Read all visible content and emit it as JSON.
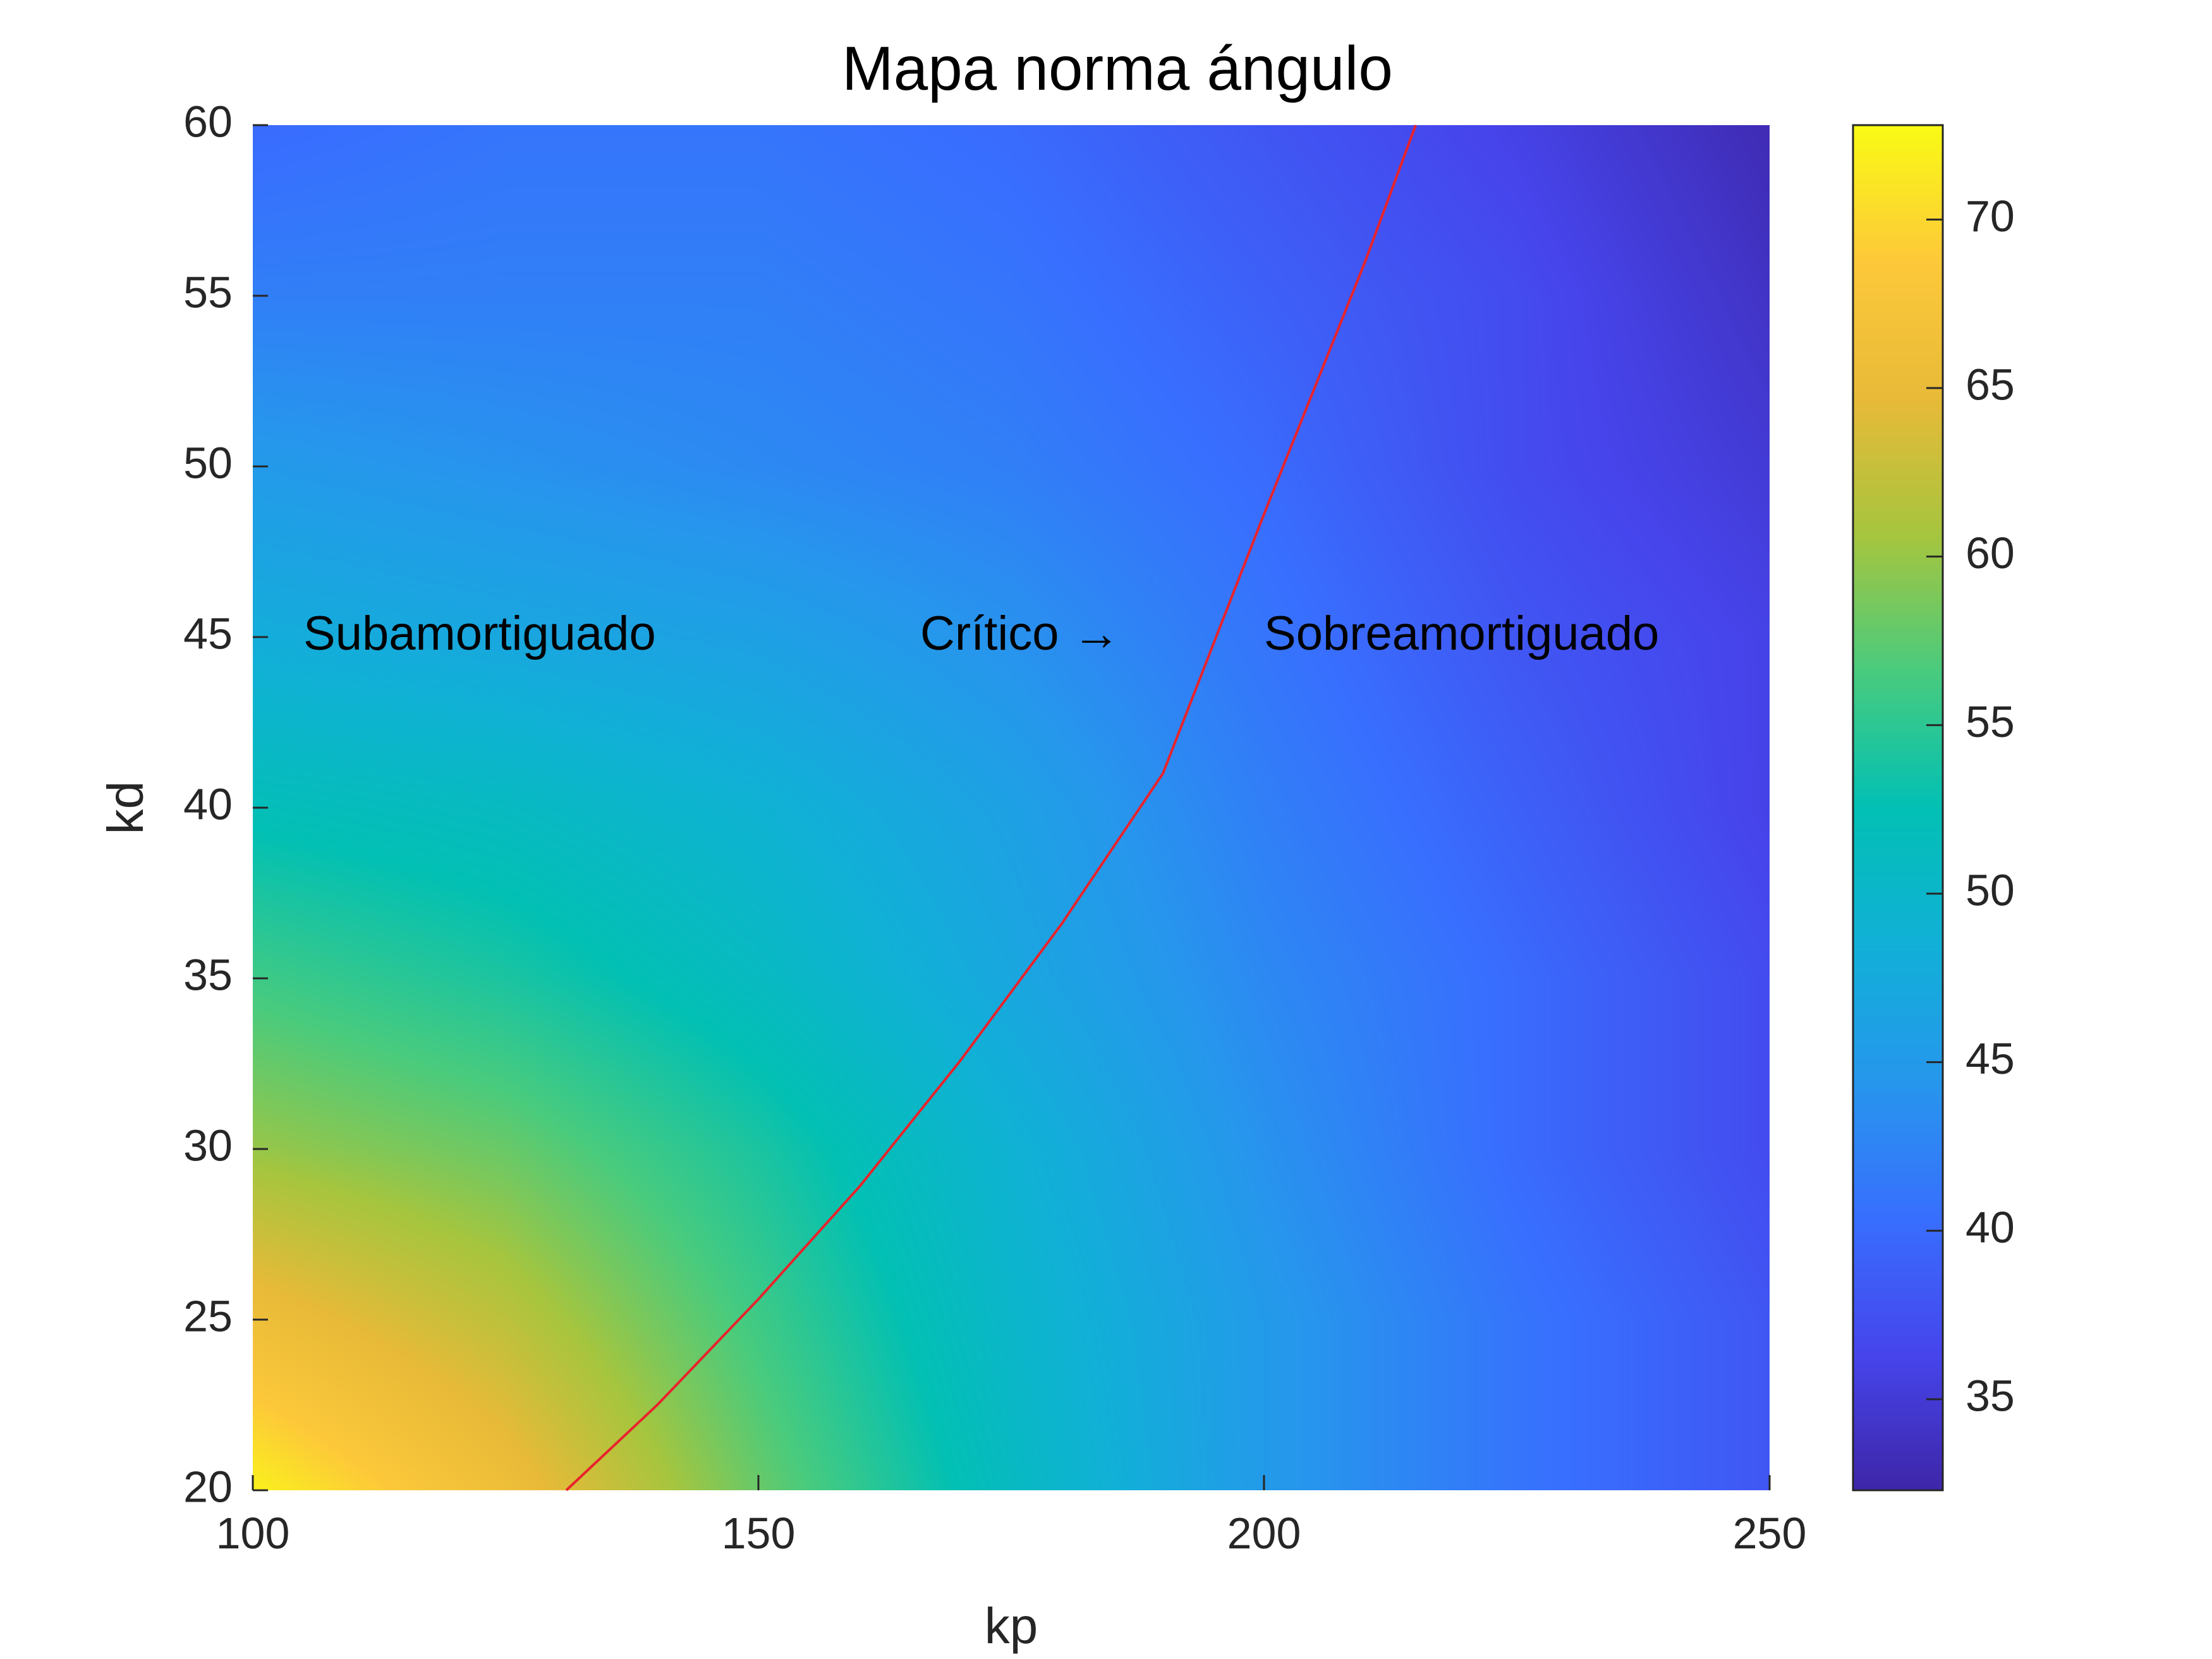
{
  "chart_data": {
    "type": "heatmap",
    "title": "Mapa norma ángulo",
    "xlabel": "kp",
    "ylabel": "kd",
    "xlim": [
      100,
      250
    ],
    "ylim": [
      20,
      60
    ],
    "x_ticks": [
      "100",
      "150",
      "200",
      "250"
    ],
    "y_ticks": [
      "20",
      "25",
      "30",
      "35",
      "40",
      "45",
      "50",
      "55",
      "60"
    ],
    "colorbar": {
      "colormap": "parula",
      "clim": [
        32.3,
        72.8
      ],
      "ticks": [
        "35",
        "40",
        "45",
        "50",
        "55",
        "60",
        "65",
        "70"
      ]
    },
    "z_samples": {
      "description_units": "kd rows (20..60 step 5) x kp columns (100..250 step 25)",
      "kp": [
        100,
        125,
        150,
        175,
        200,
        225,
        250
      ],
      "kd": [
        20,
        25,
        30,
        35,
        40,
        45,
        50,
        55,
        60
      ],
      "values": [
        [
          72,
          66,
          58,
          51,
          45,
          41,
          38
        ],
        [
          66,
          62,
          56,
          50,
          45,
          41,
          38
        ],
        [
          60,
          58,
          54,
          49,
          44,
          40,
          37
        ],
        [
          56,
          54,
          51,
          47,
          43,
          40,
          37
        ],
        [
          52,
          51,
          49,
          46,
          42,
          39,
          36
        ],
        [
          48,
          47,
          46,
          44,
          41,
          38,
          36
        ],
        [
          45,
          44,
          43,
          42,
          40,
          37,
          35
        ],
        [
          42,
          42,
          42,
          41,
          39,
          37,
          34
        ],
        [
          40,
          41,
          41,
          40,
          38,
          36,
          33
        ]
      ]
    },
    "critical_curve": {
      "color": "#e8232c",
      "kp": [
        131,
        140,
        150,
        160,
        170,
        180,
        190,
        200,
        210,
        215
      ],
      "kd": [
        20,
        22.5,
        25.6,
        28.9,
        32.6,
        36.6,
        41.0,
        48.6,
        56.0,
        60
      ]
    },
    "annotations": [
      {
        "text": "Subamortiguado",
        "kp": 105,
        "kd": 45
      },
      {
        "text": "Crítico →",
        "kp": 166,
        "kd": 45
      },
      {
        "text": "Sobreamortiguado",
        "kp": 200,
        "kd": 45
      }
    ]
  }
}
